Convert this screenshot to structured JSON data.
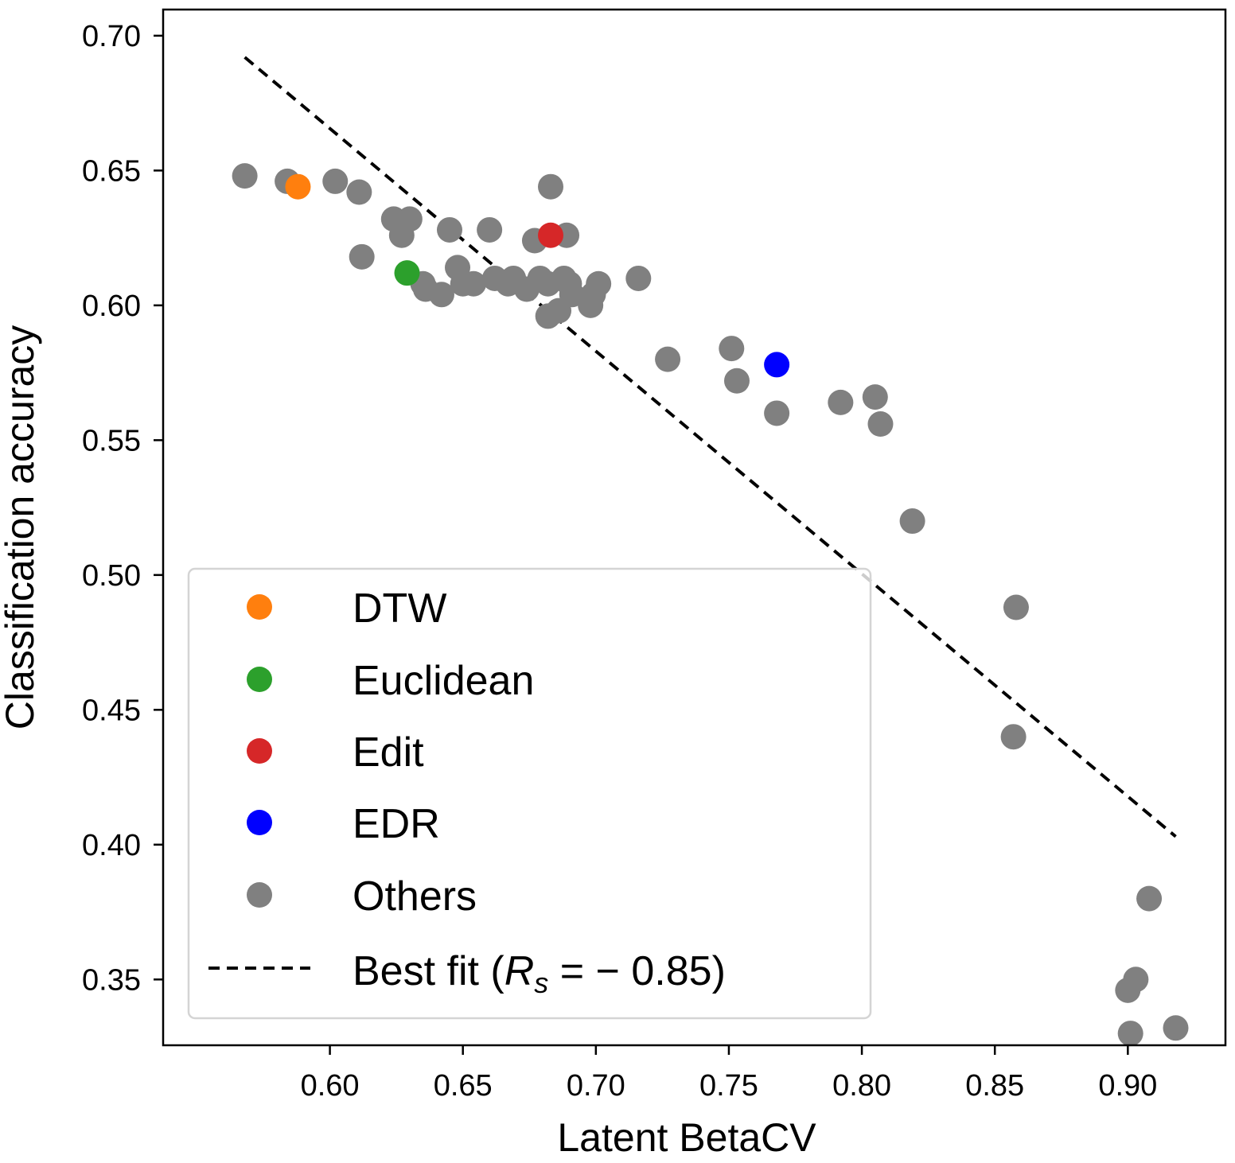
{
  "chart_data": {
    "type": "scatter",
    "title": "",
    "xlabel": "Latent BetaCV",
    "ylabel": "Classification accuracy",
    "xlim": [
      0.5373,
      0.9367
    ],
    "ylim": [
      0.3256,
      0.7097
    ],
    "xticks": [
      0.6,
      0.65,
      0.7,
      0.75,
      0.8,
      0.85,
      0.9
    ],
    "xtick_labels": [
      "0.60",
      "0.65",
      "0.70",
      "0.75",
      "0.80",
      "0.85",
      "0.90"
    ],
    "yticks": [
      0.35,
      0.4,
      0.45,
      0.5,
      0.55,
      0.6,
      0.65,
      0.7
    ],
    "ytick_labels": [
      "0.35",
      "0.40",
      "0.45",
      "0.50",
      "0.55",
      "0.60",
      "0.65",
      "0.70"
    ],
    "grid": false,
    "legend_position": "lower-left",
    "series": [
      {
        "name": "DTW",
        "color": "#ff7f0e",
        "points": [
          [
            0.588,
            0.644
          ]
        ]
      },
      {
        "name": "Euclidean",
        "color": "#2ca02c",
        "points": [
          [
            0.629,
            0.612
          ]
        ]
      },
      {
        "name": "Edit",
        "color": "#d62728",
        "points": [
          [
            0.683,
            0.626
          ]
        ]
      },
      {
        "name": "EDR",
        "color": "#0000ff",
        "points": [
          [
            0.768,
            0.578
          ]
        ]
      },
      {
        "name": "Others",
        "color": "#808080",
        "points": [
          [
            0.568,
            0.648
          ],
          [
            0.584,
            0.646
          ],
          [
            0.602,
            0.646
          ],
          [
            0.611,
            0.642
          ],
          [
            0.612,
            0.618
          ],
          [
            0.624,
            0.632
          ],
          [
            0.627,
            0.626
          ],
          [
            0.63,
            0.632
          ],
          [
            0.635,
            0.608
          ],
          [
            0.636,
            0.606
          ],
          [
            0.642,
            0.604
          ],
          [
            0.645,
            0.628
          ],
          [
            0.648,
            0.614
          ],
          [
            0.65,
            0.608
          ],
          [
            0.654,
            0.608
          ],
          [
            0.66,
            0.628
          ],
          [
            0.662,
            0.61
          ],
          [
            0.667,
            0.608
          ],
          [
            0.669,
            0.61
          ],
          [
            0.674,
            0.606
          ],
          [
            0.677,
            0.624
          ],
          [
            0.679,
            0.61
          ],
          [
            0.682,
            0.608
          ],
          [
            0.682,
            0.596
          ],
          [
            0.683,
            0.644
          ],
          [
            0.686,
            0.598
          ],
          [
            0.688,
            0.61
          ],
          [
            0.689,
            0.626
          ],
          [
            0.69,
            0.608
          ],
          [
            0.691,
            0.604
          ],
          [
            0.698,
            0.6
          ],
          [
            0.699,
            0.604
          ],
          [
            0.701,
            0.608
          ],
          [
            0.716,
            0.61
          ],
          [
            0.727,
            0.58
          ],
          [
            0.751,
            0.584
          ],
          [
            0.753,
            0.572
          ],
          [
            0.768,
            0.56
          ],
          [
            0.792,
            0.564
          ],
          [
            0.805,
            0.566
          ],
          [
            0.807,
            0.556
          ],
          [
            0.819,
            0.52
          ],
          [
            0.857,
            0.44
          ],
          [
            0.858,
            0.488
          ],
          [
            0.9,
            0.346
          ],
          [
            0.901,
            0.33
          ],
          [
            0.903,
            0.35
          ],
          [
            0.908,
            0.38
          ],
          [
            0.918,
            0.332
          ]
        ]
      }
    ],
    "fit_line": {
      "name": "Best fit",
      "style": "dashed",
      "color": "#000000",
      "x": [
        0.568,
        0.918
      ],
      "y": [
        0.692,
        0.403
      ],
      "spearman": "−0.85"
    }
  },
  "legend": {
    "fit_label_prefix": "Best fit (",
    "fit_label_var": "R",
    "fit_label_sub": "s",
    "fit_label_eq": " = ",
    "fit_label_value": "− 0.85",
    "fit_label_suffix": ")"
  }
}
